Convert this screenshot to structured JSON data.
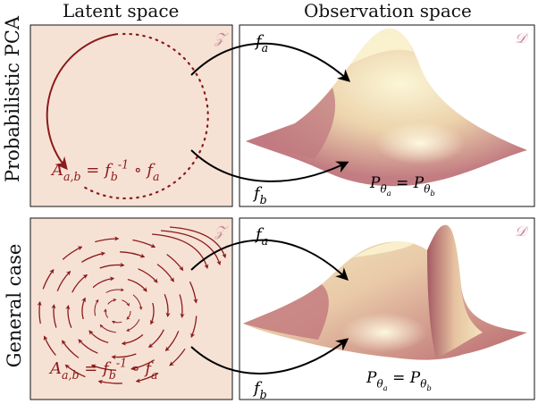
{
  "header": {
    "latent_title": "Latent space",
    "observation_title": "Observation space"
  },
  "rows": [
    {
      "label": "Probabilistic PCA",
      "latent_symbol": "𝒵",
      "observation_symbol": "𝒟",
      "map_top": "f_a",
      "map_bottom": "f_b",
      "latent_formula": "A_{a,b} = f_b^{-1} ∘ f_a",
      "observation_formula": "P_{θ_a} = P_{θ_b}"
    },
    {
      "label": "General case",
      "latent_symbol": "𝒵",
      "observation_symbol": "𝒟",
      "map_top": "f_a",
      "map_bottom": "f_b",
      "latent_formula": "A_{a,b} = f_b^{-1} ∘ f_a",
      "observation_formula": "P_{θ_a} = P_{θ_b}"
    }
  ],
  "colors": {
    "latent_fill": "#f6e2d5",
    "arrow_red": "#8b1a1a",
    "symbol_pink": "#c9879a",
    "surface_light": "#f6efc4",
    "surface_dark": "#c47b80"
  }
}
